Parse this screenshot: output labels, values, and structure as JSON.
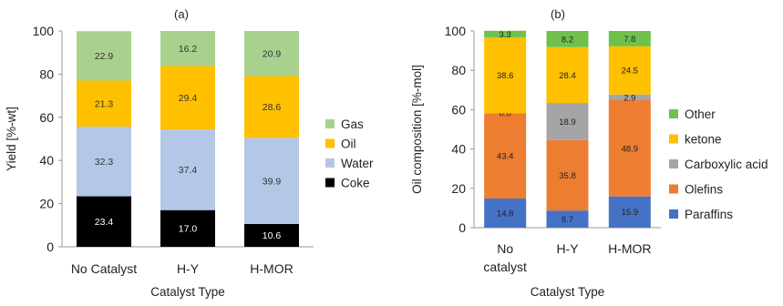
{
  "chart_data": [
    {
      "id": "a",
      "type": "bar",
      "stacked": true,
      "title": "(a)",
      "xlabel": "Catalyst Type",
      "ylabel": "Yield [%-wt]",
      "ylim": [
        0,
        100
      ],
      "yticks": [
        0,
        20,
        40,
        60,
        80,
        100
      ],
      "grid": false,
      "legend_position": "right",
      "categories": [
        "No Catalyst",
        "H-Y",
        "H-MOR"
      ],
      "series": [
        {
          "name": "Coke",
          "color": "#000000",
          "label_color": "#ffffff",
          "values": [
            23.4,
            17.0,
            10.6
          ],
          "labels": [
            "23.4",
            "17.0",
            "10.6"
          ]
        },
        {
          "name": "Water",
          "color": "#b4c7e7",
          "label_color": "#333333",
          "values": [
            32.3,
            37.4,
            39.9
          ],
          "labels": [
            "32.3",
            "37.4",
            "39.9"
          ]
        },
        {
          "name": "Oil",
          "color": "#ffc000",
          "label_color": "#333333",
          "values": [
            21.3,
            29.4,
            28.6
          ],
          "labels": [
            "21.3",
            "29.4",
            "28.6"
          ]
        },
        {
          "name": "Gas",
          "color": "#a9d18e",
          "label_color": "#333333",
          "values": [
            22.9,
            16.2,
            20.9
          ],
          "labels": [
            "22.9",
            "16.2",
            "20.9"
          ]
        }
      ]
    },
    {
      "id": "b",
      "type": "bar",
      "stacked": true,
      "title": "(b)",
      "xlabel": "Catalyst Type",
      "ylabel": "Oil composition  [%-mol]",
      "ylim": [
        0,
        100
      ],
      "yticks": [
        0,
        20,
        40,
        60,
        80,
        100
      ],
      "grid": false,
      "legend_position": "right",
      "categories": [
        "No\ncatalyst",
        "H-Y",
        "H-MOR"
      ],
      "series": [
        {
          "name": "Paraffins",
          "color": "#4472c4",
          "label_color": "#222222",
          "values": [
            14.8,
            8.7,
            15.9
          ],
          "labels": [
            "14.8",
            "8.7",
            "15.9"
          ]
        },
        {
          "name": "Olefins",
          "color": "#ed7d31",
          "label_color": "#222222",
          "values": [
            43.4,
            35.8,
            48.9
          ],
          "labels": [
            "43.4",
            "35.8",
            "48.9"
          ]
        },
        {
          "name": "Carboxylic acid",
          "color": "#a5a5a5",
          "label_color": "#222222",
          "values": [
            0.0,
            18.9,
            2.9
          ],
          "labels": [
            "0.0",
            "18.9",
            "2.9"
          ]
        },
        {
          "name": "ketone",
          "color": "#ffc000",
          "label_color": "#222222",
          "values": [
            38.6,
            28.4,
            24.5
          ],
          "labels": [
            "38.6",
            "28.4",
            "24.5"
          ]
        },
        {
          "name": "Other",
          "color": "#70c04c",
          "label_color": "#222222",
          "values": [
            3.3,
            8.2,
            7.8
          ],
          "labels": [
            "3.3",
            "8.2",
            "7.8"
          ]
        }
      ]
    }
  ]
}
